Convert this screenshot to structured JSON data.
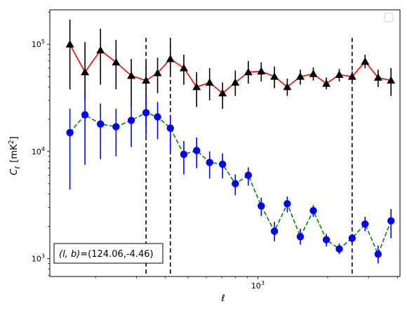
{
  "chart_data": {
    "type": "scatter",
    "xlabel": "ℓ",
    "ylabel_main": "C",
    "ylabel_sub": "ℓ",
    "ylabel_unit": "[mK",
    "ylabel_unit_sup": "2",
    "ylabel_unit_close": "]",
    "xscale": "log",
    "yscale": "log",
    "xlim": [
      127,
      4100
    ],
    "ylim": [
      680,
      210000
    ],
    "x_ticks": [
      {
        "base": "10",
        "exp": "3",
        "value": 1000
      }
    ],
    "y_ticks": [
      {
        "base": "10",
        "exp": "3",
        "value": 1000
      },
      {
        "base": "10",
        "exp": "4",
        "value": 10000
      },
      {
        "base": "10",
        "exp": "5",
        "value": 100000
      }
    ],
    "legend": {
      "position": "upper right",
      "entries": []
    },
    "annotation": {
      "prefix": "(l, b)",
      "value": "=(124.06,-4.46)",
      "position": "lower left"
    },
    "vlines": [
      {
        "x": 330,
        "style": "dashed",
        "color": "#000000"
      },
      {
        "x": 420,
        "style": "dashed",
        "color": "#000000"
      },
      {
        "x": 2550,
        "style": "dashed",
        "color": "#000000"
      }
    ],
    "series": [
      {
        "marker": "triangle",
        "marker_color": "#000000",
        "line_color": "#ff0000",
        "line_style": "solid",
        "points": [
          {
            "x": 155,
            "y": 100000,
            "lo": 38000,
            "hi": 170000
          },
          {
            "x": 180,
            "y": 55000,
            "lo": 30000,
            "hi": 105000
          },
          {
            "x": 210,
            "y": 88000,
            "lo": 42000,
            "hi": 140000
          },
          {
            "x": 245,
            "y": 68000,
            "lo": 38000,
            "hi": 110000
          },
          {
            "x": 285,
            "y": 51000,
            "lo": 27000,
            "hi": 73000
          },
          {
            "x": 330,
            "y": 46000,
            "lo": 18000,
            "hi": 68000
          },
          {
            "x": 370,
            "y": 54000,
            "lo": 35000,
            "hi": 75000
          },
          {
            "x": 420,
            "y": 73000,
            "lo": 50000,
            "hi": 105000
          },
          {
            "x": 480,
            "y": 60000,
            "lo": 42000,
            "hi": 80000
          },
          {
            "x": 545,
            "y": 40000,
            "lo": 26000,
            "hi": 55000
          },
          {
            "x": 620,
            "y": 44000,
            "lo": 30000,
            "hi": 60000
          },
          {
            "x": 705,
            "y": 35000,
            "lo": 25000,
            "hi": 44000
          },
          {
            "x": 800,
            "y": 44000,
            "lo": 33000,
            "hi": 57000
          },
          {
            "x": 910,
            "y": 55000,
            "lo": 43000,
            "hi": 70000
          },
          {
            "x": 1035,
            "y": 56000,
            "lo": 45000,
            "hi": 68000
          },
          {
            "x": 1180,
            "y": 50000,
            "lo": 39000,
            "hi": 62000
          },
          {
            "x": 1340,
            "y": 40000,
            "lo": 33000,
            "hi": 48000
          },
          {
            "x": 1525,
            "y": 50000,
            "lo": 42000,
            "hi": 58000
          },
          {
            "x": 1735,
            "y": 53000,
            "lo": 46000,
            "hi": 61000
          },
          {
            "x": 1975,
            "y": 43000,
            "lo": 38000,
            "hi": 49000
          },
          {
            "x": 2245,
            "y": 52000,
            "lo": 45000,
            "hi": 59000
          },
          {
            "x": 2550,
            "y": 50000,
            "lo": 45000,
            "hi": 56000
          },
          {
            "x": 2900,
            "y": 69000,
            "lo": 60000,
            "hi": 80000
          },
          {
            "x": 3300,
            "y": 49000,
            "lo": 40000,
            "hi": 58000
          },
          {
            "x": 3750,
            "y": 46000,
            "lo": 33000,
            "hi": 60000
          }
        ]
      },
      {
        "marker": "circle",
        "marker_color": "#0000ff",
        "line_color": "#008000",
        "line_style": "dashed",
        "points": [
          {
            "x": 155,
            "y": 15000,
            "lo": 4400,
            "hi": 25000
          },
          {
            "x": 180,
            "y": 22000,
            "lo": 7500,
            "hi": 36000
          },
          {
            "x": 210,
            "y": 18000,
            "lo": 8500,
            "hi": 28000
          },
          {
            "x": 245,
            "y": 17000,
            "lo": 9000,
            "hi": 25000
          },
          {
            "x": 285,
            "y": 19500,
            "lo": 11000,
            "hi": 28000
          },
          {
            "x": 330,
            "y": 23000,
            "lo": 14000,
            "hi": 33000
          },
          {
            "x": 370,
            "y": 21000,
            "lo": 13000,
            "hi": 29000
          },
          {
            "x": 420,
            "y": 16500,
            "lo": 10000,
            "hi": 22000
          },
          {
            "x": 480,
            "y": 9400,
            "lo": 6100,
            "hi": 12500
          },
          {
            "x": 545,
            "y": 10200,
            "lo": 7000,
            "hi": 13500
          },
          {
            "x": 620,
            "y": 7900,
            "lo": 5600,
            "hi": 10000
          },
          {
            "x": 705,
            "y": 7600,
            "lo": 5600,
            "hi": 9600
          },
          {
            "x": 800,
            "y": 5000,
            "lo": 3900,
            "hi": 6100
          },
          {
            "x": 910,
            "y": 6000,
            "lo": 4800,
            "hi": 7100
          },
          {
            "x": 1035,
            "y": 3100,
            "lo": 2500,
            "hi": 3700
          },
          {
            "x": 1180,
            "y": 1800,
            "lo": 1450,
            "hi": 2200
          },
          {
            "x": 1340,
            "y": 3250,
            "lo": 2700,
            "hi": 3800
          },
          {
            "x": 1525,
            "y": 1600,
            "lo": 1350,
            "hi": 1900
          },
          {
            "x": 1735,
            "y": 2800,
            "lo": 2450,
            "hi": 3150
          },
          {
            "x": 1975,
            "y": 1500,
            "lo": 1300,
            "hi": 1700
          },
          {
            "x": 2245,
            "y": 1230,
            "lo": 1100,
            "hi": 1380
          },
          {
            "x": 2550,
            "y": 1550,
            "lo": 1400,
            "hi": 1700
          },
          {
            "x": 2900,
            "y": 2100,
            "lo": 1800,
            "hi": 2450
          },
          {
            "x": 3300,
            "y": 1100,
            "lo": 900,
            "hi": 1320
          },
          {
            "x": 3750,
            "y": 2250,
            "lo": 1550,
            "hi": 2900
          }
        ]
      }
    ]
  }
}
